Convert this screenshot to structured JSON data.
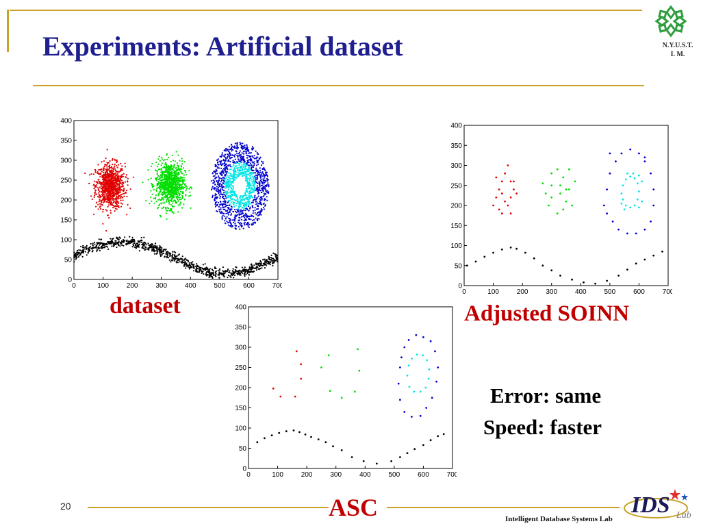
{
  "slide": {
    "title": "Experiments: Artificial dataset",
    "logo_caption_line1": "N.Y.U.S.T.",
    "logo_caption_line2": "I. M.",
    "slide_number": "20",
    "lab_name": "Intelligent Database Systems Lab",
    "lab_logo_text": "IDS",
    "lab_logo_sub": "Lab",
    "result_error": "Error: same",
    "result_speed": "Speed: faster",
    "accent_color": "#c9a227",
    "title_color": "#1f1f8f",
    "caption_color": "#c00000"
  },
  "chart_data": [
    {
      "type": "scatter",
      "title": "dataset",
      "xlabel": "",
      "ylabel": "",
      "xlim": [
        0,
        700
      ],
      "ylim": [
        0,
        400
      ],
      "xticks": [
        0,
        100,
        200,
        300,
        400,
        500,
        600,
        700
      ],
      "yticks": [
        0,
        50,
        100,
        150,
        200,
        250,
        300,
        350,
        400
      ],
      "grid": false,
      "series": [
        {
          "color": "#e00000",
          "shape": "gaussian-blob",
          "center": [
            125,
            235
          ],
          "spread": [
            25,
            28
          ],
          "count": 900
        },
        {
          "color": "#00dd00",
          "shape": "gaussian-blob",
          "center": [
            330,
            240
          ],
          "spread": [
            25,
            28
          ],
          "count": 900
        },
        {
          "color": "#0000cc",
          "shape": "ring",
          "center": [
            570,
            235
          ],
          "radius": [
            60,
            110
          ],
          "count": 900
        },
        {
          "color": "#00e5e5",
          "shape": "ring",
          "center": [
            570,
            235
          ],
          "radius": [
            25,
            60
          ],
          "count": 500
        },
        {
          "color": "#000000",
          "shape": "sine-band",
          "x_range": [
            0,
            700
          ],
          "y_mid": 55,
          "amplitude": 40,
          "count": 900
        }
      ]
    },
    {
      "type": "scatter",
      "title": "Adjusted SOINN",
      "xlabel": "",
      "ylabel": "",
      "xlim": [
        0,
        700
      ],
      "ylim": [
        0,
        400
      ],
      "xticks": [
        0,
        100,
        200,
        300,
        400,
        500,
        600,
        700
      ],
      "yticks": [
        0,
        50,
        100,
        150,
        200,
        250,
        300,
        350,
        400
      ],
      "grid": false,
      "series": [
        {
          "color": "#e00000",
          "points": [
            [
              110,
              220
            ],
            [
              120,
              240
            ],
            [
              130,
              260
            ],
            [
              140,
              280
            ],
            [
              150,
              300
            ],
            [
              160,
              260
            ],
            [
              170,
              240
            ],
            [
              100,
              200
            ],
            [
              120,
              190
            ],
            [
              140,
              210
            ],
            [
              160,
              220
            ],
            [
              180,
              230
            ],
            [
              110,
              270
            ],
            [
              130,
              230
            ],
            [
              150,
              200
            ],
            [
              170,
              260
            ],
            [
              160,
              180
            ],
            [
              130,
              180
            ]
          ]
        },
        {
          "color": "#00dd00",
          "points": [
            [
              300,
              250
            ],
            [
              320,
              290
            ],
            [
              340,
              270
            ],
            [
              360,
              240
            ],
            [
              380,
              260
            ],
            [
              300,
              220
            ],
            [
              330,
              230
            ],
            [
              350,
              210
            ],
            [
              370,
              200
            ],
            [
              290,
              200
            ],
            [
              320,
              180
            ],
            [
              350,
              240
            ],
            [
              360,
              290
            ],
            [
              300,
              280
            ],
            [
              340,
              190
            ],
            [
              270,
              255
            ],
            [
              330,
              250
            ],
            [
              280,
              230
            ]
          ]
        },
        {
          "color": "#0000cc",
          "points": [
            [
              480,
              200
            ],
            [
              490,
              240
            ],
            [
              500,
              280
            ],
            [
              520,
              310
            ],
            [
              540,
              330
            ],
            [
              570,
              340
            ],
            [
              600,
              330
            ],
            [
              620,
              310
            ],
            [
              640,
              280
            ],
            [
              650,
              240
            ],
            [
              650,
              200
            ],
            [
              640,
              160
            ],
            [
              620,
              140
            ],
            [
              590,
              130
            ],
            [
              560,
              130
            ],
            [
              530,
              140
            ],
            [
              510,
              160
            ],
            [
              490,
              180
            ],
            [
              500,
              330
            ],
            [
              620,
              320
            ]
          ]
        },
        {
          "color": "#00e5e5",
          "points": [
            [
              540,
              230
            ],
            [
              545,
              250
            ],
            [
              555,
              265
            ],
            [
              570,
              272
            ],
            [
              585,
              268
            ],
            [
              595,
              255
            ],
            [
              600,
              235
            ],
            [
              595,
              215
            ],
            [
              585,
              200
            ],
            [
              570,
              195
            ],
            [
              555,
              200
            ],
            [
              545,
              215
            ],
            [
              560,
              280
            ],
            [
              580,
              280
            ],
            [
              600,
              275
            ],
            [
              610,
              260
            ],
            [
              610,
              210
            ],
            [
              600,
              195
            ],
            [
              540,
              205
            ],
            [
              550,
              190
            ]
          ]
        },
        {
          "color": "#000000",
          "points": [
            [
              10,
              50
            ],
            [
              40,
              60
            ],
            [
              70,
              72
            ],
            [
              100,
              82
            ],
            [
              130,
              90
            ],
            [
              160,
              95
            ],
            [
              180,
              92
            ],
            [
              210,
              82
            ],
            [
              240,
              68
            ],
            [
              270,
              50
            ],
            [
              300,
              38
            ],
            [
              330,
              25
            ],
            [
              370,
              15
            ],
            [
              410,
              8
            ],
            [
              450,
              5
            ],
            [
              490,
              12
            ],
            [
              530,
              25
            ],
            [
              560,
              40
            ],
            [
              590,
              55
            ],
            [
              620,
              65
            ],
            [
              650,
              75
            ],
            [
              680,
              85
            ]
          ]
        }
      ]
    },
    {
      "type": "scatter",
      "title": "ASC",
      "xlabel": "",
      "ylabel": "",
      "xlim": [
        0,
        700
      ],
      "ylim": [
        0,
        400
      ],
      "xticks": [
        0,
        100,
        200,
        300,
        400,
        500,
        600,
        700
      ],
      "yticks": [
        0,
        50,
        100,
        150,
        200,
        250,
        300,
        350,
        400
      ],
      "grid": false,
      "series": [
        {
          "color": "#e00000",
          "points": [
            [
              85,
              198
            ],
            [
              110,
              178
            ],
            [
              160,
              178
            ],
            [
              165,
              290
            ],
            [
              180,
              258
            ],
            [
              180,
              222
            ]
          ]
        },
        {
          "color": "#00dd00",
          "points": [
            [
              250,
              250
            ],
            [
              275,
              280
            ],
            [
              280,
              192
            ],
            [
              320,
              175
            ],
            [
              365,
              190
            ],
            [
              375,
              295
            ],
            [
              380,
              242
            ]
          ]
        },
        {
          "color": "#0000cc",
          "points": [
            [
              520,
              250
            ],
            [
              525,
              275
            ],
            [
              535,
              300
            ],
            [
              550,
              318
            ],
            [
              575,
              330
            ],
            [
              600,
              325
            ],
            [
              625,
              315
            ],
            [
              640,
              290
            ],
            [
              650,
              250
            ],
            [
              645,
              215
            ],
            [
              630,
              175
            ],
            [
              610,
              150
            ],
            [
              590,
              130
            ],
            [
              560,
              128
            ],
            [
              535,
              140
            ],
            [
              520,
              170
            ],
            [
              515,
              210
            ]
          ]
        },
        {
          "color": "#00e5e5",
          "points": [
            [
              545,
              230
            ],
            [
              550,
              255
            ],
            [
              560,
              272
            ],
            [
              578,
              282
            ],
            [
              598,
              280
            ],
            [
              612,
              268
            ],
            [
              620,
              245
            ],
            [
              618,
              222
            ],
            [
              608,
              200
            ],
            [
              590,
              190
            ],
            [
              568,
              190
            ],
            [
              552,
              202
            ]
          ]
        },
        {
          "color": "#000000",
          "points": [
            [
              30,
              65
            ],
            [
              55,
              75
            ],
            [
              80,
              82
            ],
            [
              105,
              88
            ],
            [
              130,
              92
            ],
            [
              155,
              94
            ],
            [
              175,
              90
            ],
            [
              195,
              84
            ],
            [
              215,
              78
            ],
            [
              240,
              72
            ],
            [
              265,
              65
            ],
            [
              290,
              55
            ],
            [
              320,
              45
            ],
            [
              355,
              28
            ],
            [
              395,
              18
            ],
            [
              440,
              12
            ],
            [
              490,
              18
            ],
            [
              520,
              28
            ],
            [
              545,
              38
            ],
            [
              570,
              48
            ],
            [
              600,
              58
            ],
            [
              625,
              70
            ],
            [
              650,
              80
            ],
            [
              670,
              85
            ]
          ]
        }
      ]
    }
  ]
}
